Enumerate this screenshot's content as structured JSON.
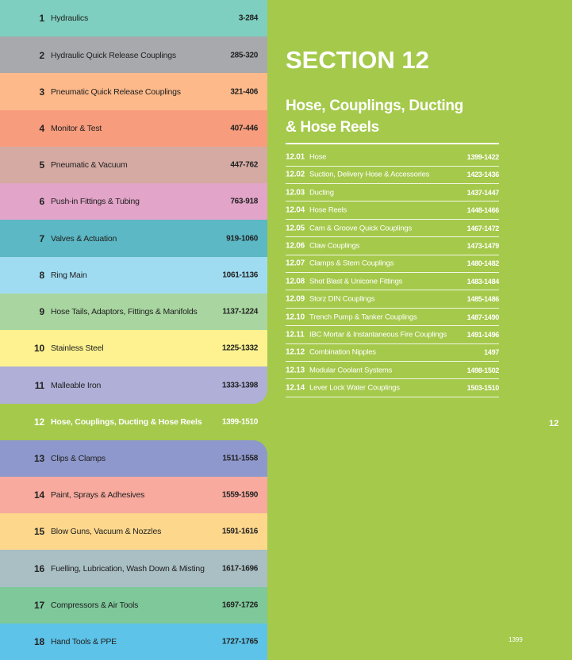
{
  "sections": [
    {
      "number": "1",
      "title": "Hydraulics",
      "pages": "3-284"
    },
    {
      "number": "2",
      "title": "Hydraulic Quick Release Couplings",
      "pages": "285-320"
    },
    {
      "number": "3",
      "title": "Pneumatic Quick Release Couplings",
      "pages": "321-406"
    },
    {
      "number": "4",
      "title": "Monitor & Test",
      "pages": "407-446"
    },
    {
      "number": "5",
      "title": "Pneumatic & Vacuum",
      "pages": "447-762"
    },
    {
      "number": "6",
      "title": "Push-in Fittings & Tubing",
      "pages": "763-918"
    },
    {
      "number": "7",
      "title": "Valves & Actuation",
      "pages": "919-1060"
    },
    {
      "number": "8",
      "title": "Ring Main",
      "pages": "1061-1136"
    },
    {
      "number": "9",
      "title": "Hose Tails, Adaptors, Fittings & Manifolds",
      "pages": "1137-1224"
    },
    {
      "number": "10",
      "title": "Stainless Steel",
      "pages": "1225-1332"
    },
    {
      "number": "11",
      "title": "Malleable Iron",
      "pages": "1333-1398"
    },
    {
      "number": "12",
      "title": "Hose, Couplings, Ducting & Hose Reels",
      "pages": "1399-1510"
    },
    {
      "number": "13",
      "title": "Clips & Clamps",
      "pages": "1511-1558"
    },
    {
      "number": "14",
      "title": "Paint, Sprays & Adhesives",
      "pages": "1559-1590"
    },
    {
      "number": "15",
      "title": "Blow Guns, Vacuum & Nozzles",
      "pages": "1591-1616"
    },
    {
      "number": "16",
      "title": "Fuelling, Lubrication, Wash Down & Misting",
      "pages": "1617-1696"
    },
    {
      "number": "17",
      "title": "Compressors & Air Tools",
      "pages": "1697-1726"
    },
    {
      "number": "18",
      "title": "Hand Tools & PPE",
      "pages": "1727-1765"
    }
  ],
  "header": {
    "section": "SECTION 12",
    "title_line1": "Hose, Couplings, Ducting",
    "title_line2": "& Hose Reels"
  },
  "subsections": [
    {
      "number": "12.01",
      "title": "Hose",
      "pages": "1399-1422"
    },
    {
      "number": "12.02",
      "title": "Suction, Delivery Hose & Accessories",
      "pages": "1423-1436"
    },
    {
      "number": "12.03",
      "title": "Ducting",
      "pages": "1437-1447"
    },
    {
      "number": "12.04",
      "title": "Hose Reels",
      "pages": "1448-1466"
    },
    {
      "number": "12.05",
      "title": "Cam & Groove Quick Couplings",
      "pages": "1467-1472"
    },
    {
      "number": "12.06",
      "title": "Claw Couplings",
      "pages": "1473-1479"
    },
    {
      "number": "12.07",
      "title": "Clamps & Stem Couplings",
      "pages": "1480-1482"
    },
    {
      "number": "12.08",
      "title": "Shot Blast & Unicone Fittings",
      "pages": "1483-1484"
    },
    {
      "number": "12.09",
      "title": "Storz DIN Couplings",
      "pages": "1485-1486"
    },
    {
      "number": "12.10",
      "title": "Trench Pump & Tanker Couplings",
      "pages": "1487-1490"
    },
    {
      "number": "12.11",
      "title": "IBC Mortar & Instantaneous Fire Couplings",
      "pages": "1491-1496"
    },
    {
      "number": "12.12",
      "title": "Combination Nipples",
      "pages": "1497"
    },
    {
      "number": "12.13",
      "title": "Modular Coolant Systems",
      "pages": "1498-1502"
    },
    {
      "number": "12.14",
      "title": "Lever Lock Water Couplings",
      "pages": "1503-1510"
    }
  ],
  "tab": "12",
  "page_number": "1399"
}
